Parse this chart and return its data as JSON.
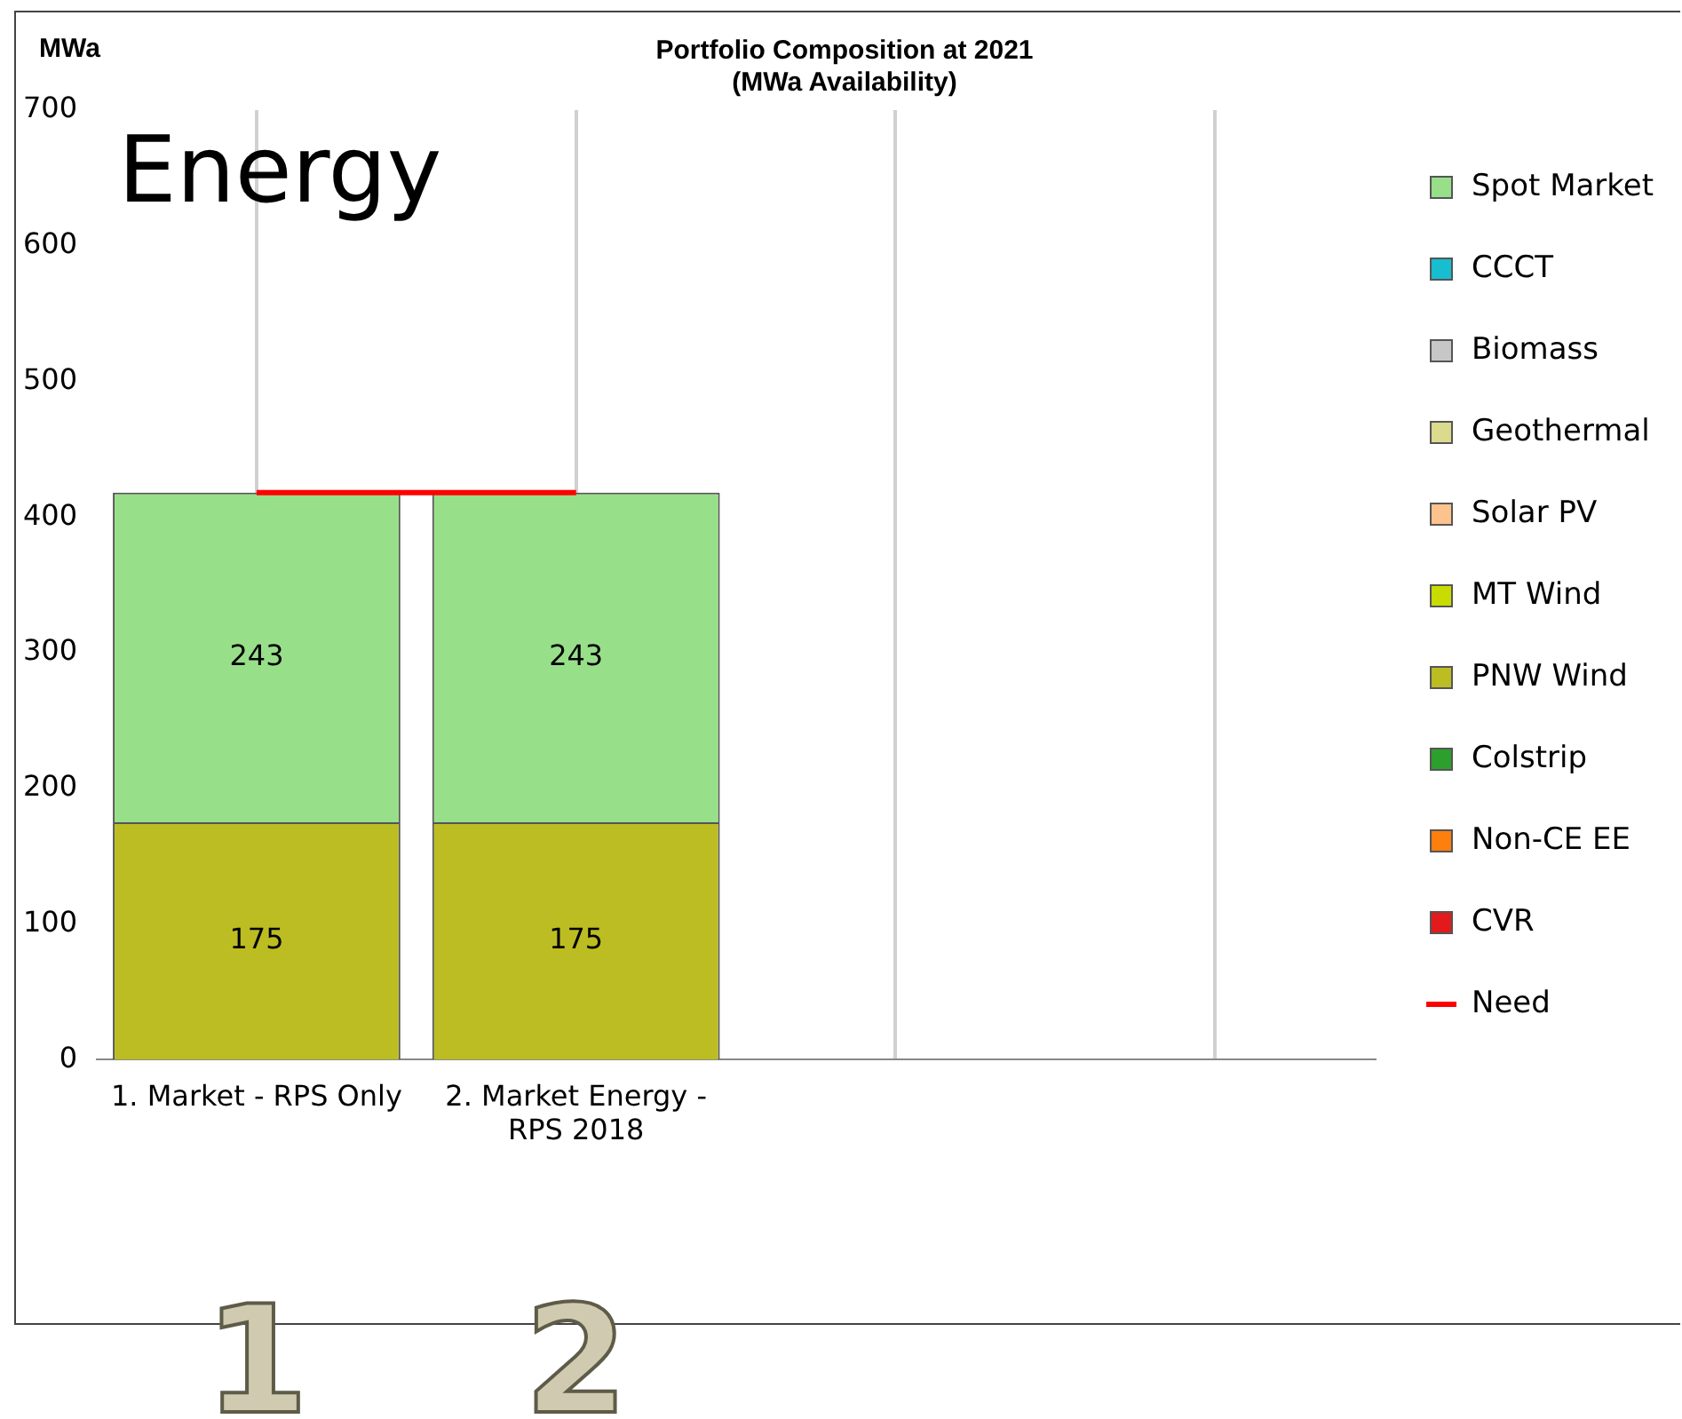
{
  "chart_data": {
    "type": "bar",
    "title": "Portfolio Composition at 2021",
    "subtitle": "(MWa Availability)",
    "ylabel": "MWa",
    "categories": [
      "1. Market - RPS Only",
      "2. Market Energy - RPS 2018",
      null,
      null
    ],
    "stacked": true,
    "ylim": [
      0,
      700
    ],
    "yticks": [
      0,
      100,
      200,
      300,
      400,
      500,
      600,
      700
    ],
    "grid": "x",
    "legend": "right",
    "annotations": [
      "Energy",
      "1",
      "2"
    ],
    "series": [
      {
        "name": "CVR",
        "color": "#e31a1c",
        "values": [
          null,
          null,
          null,
          null
        ]
      },
      {
        "name": "Non-CE EE",
        "color": "#ff7f0e",
        "values": [
          null,
          null,
          null,
          null
        ]
      },
      {
        "name": "Colstrip",
        "color": "#2ca02c",
        "values": [
          null,
          null,
          null,
          null
        ]
      },
      {
        "name": "PNW Wind",
        "color": "#bcbd22",
        "values": [
          175,
          175,
          null,
          null
        ],
        "value_labels": [
          "175",
          "175",
          null,
          null
        ]
      },
      {
        "name": "MT Wind",
        "color": "#c8dc00",
        "values": [
          null,
          null,
          null,
          null
        ]
      },
      {
        "name": "Solar PV",
        "color": "#fdc38d",
        "values": [
          null,
          null,
          null,
          null
        ]
      },
      {
        "name": "Geothermal",
        "color": "#dbdb8d",
        "values": [
          null,
          null,
          null,
          null
        ]
      },
      {
        "name": "Biomass",
        "color": "#c7c7c7",
        "values": [
          null,
          null,
          null,
          null
        ]
      },
      {
        "name": "CCCT",
        "color": "#17becf",
        "values": [
          null,
          null,
          null,
          null
        ]
      },
      {
        "name": "Spot Market",
        "color": "#98df8a",
        "values": [
          243,
          243,
          null,
          null
        ],
        "value_labels": [
          "243",
          "243",
          null,
          null
        ]
      },
      {
        "name": "Need",
        "type": "line",
        "color": "#ff0000",
        "values": [
          418,
          418,
          null,
          null
        ]
      }
    ]
  }
}
